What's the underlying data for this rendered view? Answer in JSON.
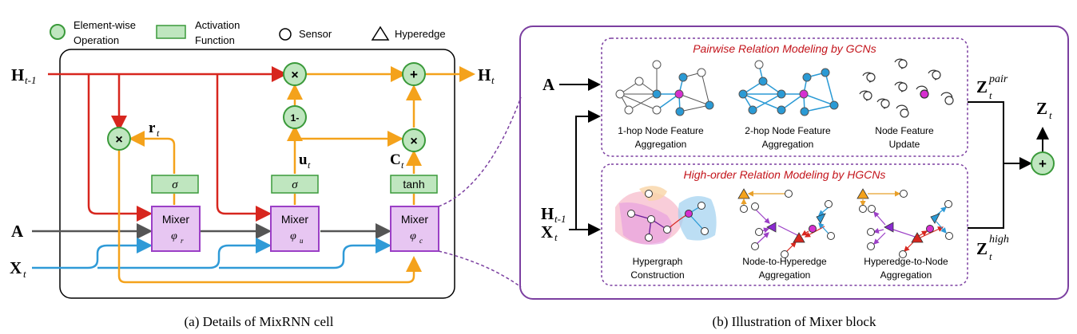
{
  "legend": {
    "elementwise": [
      "Element-wise",
      "Operation"
    ],
    "activation": [
      "Activation",
      "Function"
    ],
    "sensor": "Sensor",
    "hyperedge": "Hyperedge"
  },
  "cell": {
    "inputs": {
      "h_prev_main": "H",
      "h_prev_sub": "t-1",
      "a": "A",
      "x_main": "X",
      "x_sub": "t"
    },
    "output": {
      "main": "H",
      "sub": "t"
    },
    "ops": {
      "mult": "×",
      "plus": "+",
      "one_minus": "1-"
    },
    "gates": {
      "r_main": "r",
      "r_sub": "t",
      "u_main": "u",
      "u_sub": "t",
      "c_main": "C",
      "c_sub": "t"
    },
    "activations": {
      "sigma": "σ",
      "tanh": "tanh"
    },
    "mixers": [
      {
        "label": "Mixer",
        "phi": "φ",
        "sub": "r"
      },
      {
        "label": "Mixer",
        "phi": "φ",
        "sub": "u"
      },
      {
        "label": "Mixer",
        "phi": "φ",
        "sub": "c"
      }
    ],
    "caption": "(a) Details of MixRNN cell"
  },
  "mixer_block": {
    "input_a": "A",
    "input_h_main": "H",
    "input_h_sub": "t-1",
    "input_x_main": "X",
    "input_x_sub": "t",
    "pairwise": {
      "title": "Pairwise Relation Modeling by GCNs",
      "steps": [
        [
          "1-hop Node Feature",
          "Aggregation"
        ],
        [
          "2-hop Node Feature",
          "Aggregation"
        ],
        [
          "Node Feature",
          "Update"
        ]
      ],
      "out_main": "Z",
      "out_sub": "t",
      "out_sup": "pair"
    },
    "high_order": {
      "title": "High-order Relation Modeling by HGCNs",
      "steps": [
        [
          "Hypergraph",
          "Construction"
        ],
        [
          "Node-to-Hyperedge",
          "Aggregation"
        ],
        [
          "Hyperedge-to-Node",
          "Aggregation"
        ]
      ],
      "out_main": "Z",
      "out_sub": "t",
      "out_sup": "high"
    },
    "sum": "+",
    "final_main": "Z",
    "final_sub": "t",
    "caption": "(b) Illustration of Mixer block"
  },
  "colors": {
    "red": "#d7261e",
    "orange": "#f4a21b",
    "gray": "#555555",
    "blue": "#2f9ad7",
    "green_fill": "#bfe6bf",
    "green_stroke": "#3a9a3a",
    "mixer_fill": "#e7c6f2",
    "mixer_stroke": "#9b3fc6",
    "purple_frame": "#7b3fa0",
    "magenta": "#d62fd0",
    "node_blue": "#2a9ad5"
  }
}
